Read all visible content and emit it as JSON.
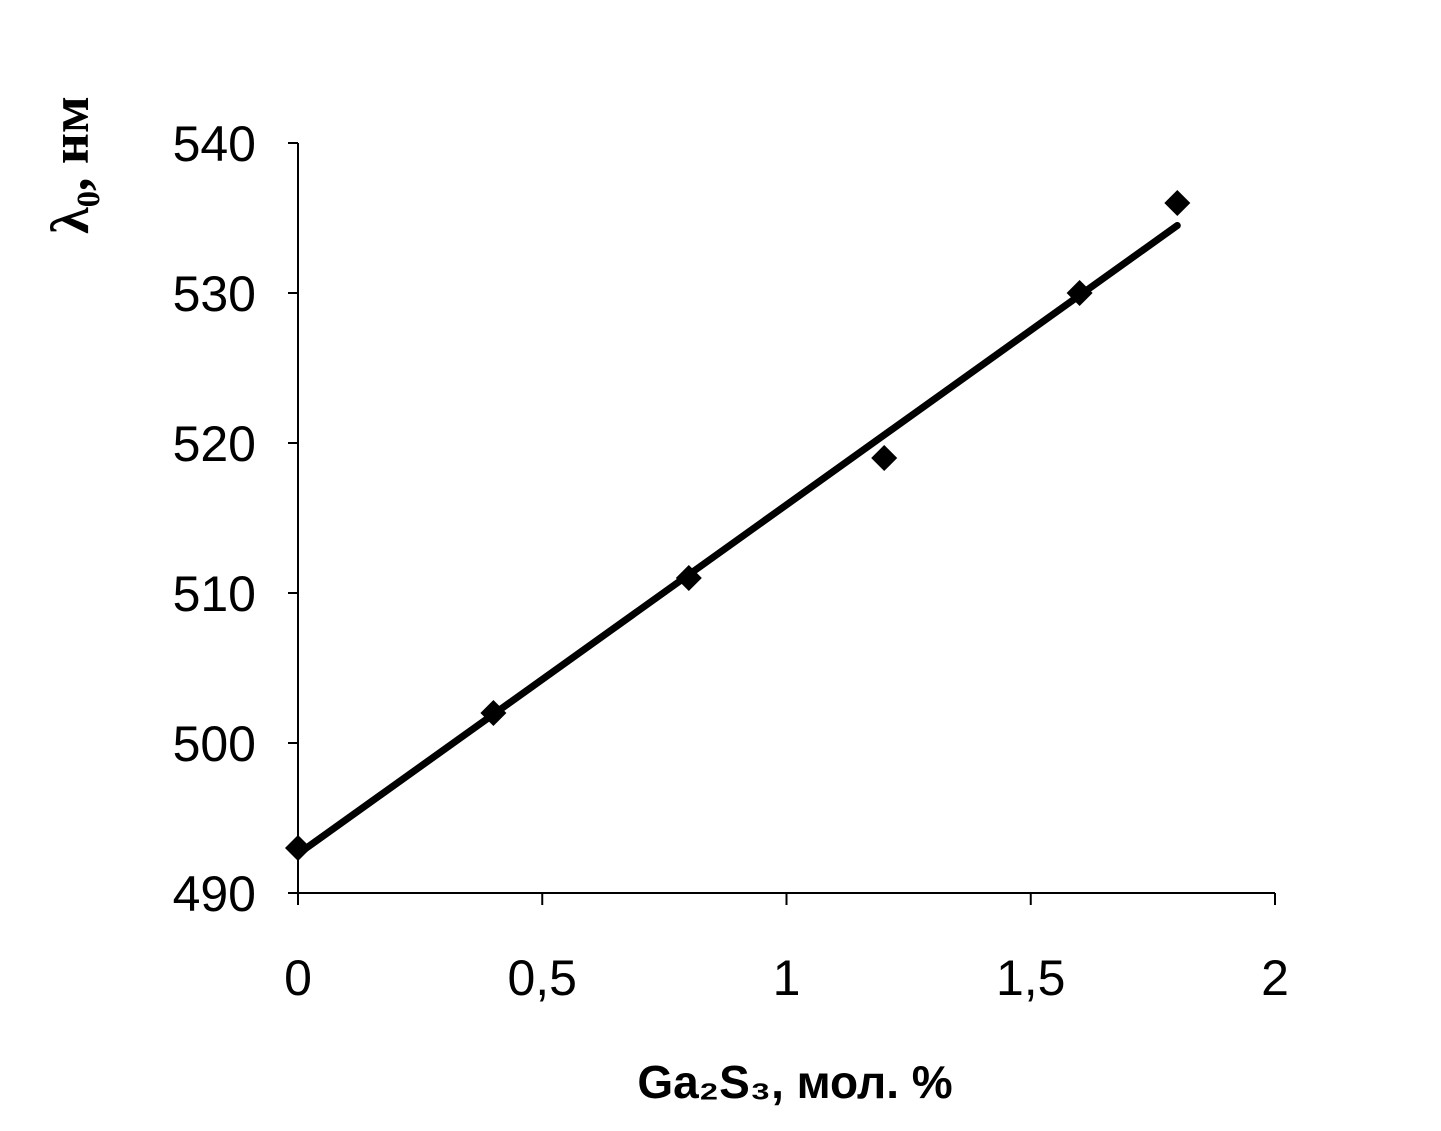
{
  "chart_data": {
    "type": "scatter",
    "xlabel": "Ga₂S₃, мол. %",
    "ylabel": "λ₀, нм",
    "xlim": [
      0,
      2
    ],
    "ylim": [
      490,
      540
    ],
    "xticks": [
      "0",
      "0,5",
      "1",
      "1,5",
      "2"
    ],
    "xtick_values": [
      0,
      0.5,
      1,
      1.5,
      2
    ],
    "yticks": [
      "490",
      "500",
      "510",
      "520",
      "530",
      "540"
    ],
    "ytick_values": [
      490,
      500,
      510,
      520,
      530,
      540
    ],
    "grid": false,
    "series": [
      {
        "x": [
          0,
          0.4,
          0.8,
          1.2,
          1.6,
          1.8
        ],
        "y": [
          493,
          502,
          511,
          519,
          530,
          536
        ]
      }
    ],
    "trendline": {
      "x": [
        0,
        1.8
      ],
      "y": [
        492.6,
        534.5
      ]
    },
    "colors": {
      "marker": "#000000",
      "line": "#000000",
      "axis": "#000000"
    }
  }
}
